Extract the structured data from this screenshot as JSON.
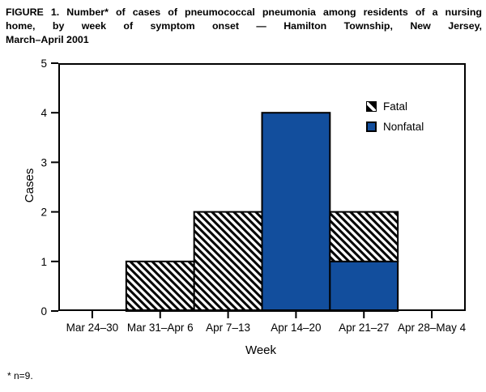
{
  "figure": {
    "title_lines": [
      "FIGURE 1. Number* of cases of pneumococcal pneumonia among residents of a nursing",
      "home, by week of symptom onset — Hamilton Township, New Jersey,",
      "March–April 2001"
    ],
    "footnote": "* n=9."
  },
  "chart_data": {
    "type": "bar",
    "stacked": true,
    "title": "FIGURE 1. Number* of cases of pneumococcal pneumonia among residents of a nursing home, by week of symptom onset — Hamilton Township, New Jersey, March–April 2001",
    "categories": [
      "Mar 24–30",
      "Mar 31–Apr 6",
      "Apr 7–13",
      "Apr 14–20",
      "Apr 21–27",
      "Apr 28–May 4"
    ],
    "series": [
      {
        "name": "Fatal",
        "style": "hatch",
        "values": [
          0,
          1,
          2,
          0,
          1,
          0
        ]
      },
      {
        "name": "Nonfatal",
        "style": "solid",
        "values": [
          0,
          0,
          0,
          4,
          1,
          0
        ]
      }
    ],
    "stack_bottom_to_top": [
      "Nonfatal",
      "Fatal"
    ],
    "xlabel": "Week",
    "ylabel": "Cases",
    "ylim": [
      0,
      5
    ],
    "yticks": [
      0,
      1,
      2,
      3,
      4,
      5
    ],
    "grid": false,
    "legend": {
      "position": "top-right-inside",
      "entries": [
        {
          "label": "Fatal",
          "style": "hatch"
        },
        {
          "label": "Nonfatal",
          "style": "solid"
        }
      ]
    }
  },
  "colors": {
    "nonfatal_blue": "#124e9d",
    "bar_outline": "#000000",
    "text": "#000000"
  }
}
